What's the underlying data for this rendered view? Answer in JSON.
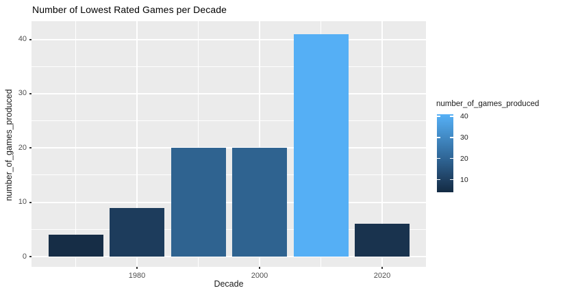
{
  "title": "Number of Lowest Rated Games per Decade",
  "chart_data": {
    "type": "bar",
    "title": "Number of Lowest Rated Games per Decade",
    "xlabel": "Decade",
    "ylabel": "number_of_games_produced",
    "categories": [
      1970,
      1980,
      1990,
      2000,
      2010,
      2020
    ],
    "values": [
      4,
      9,
      20,
      20,
      41,
      6
    ],
    "bar_colors": [
      "#162D46",
      "#1D3C5C",
      "#2F6390",
      "#2F6390",
      "#55AFF5",
      "#19334E"
    ],
    "x_ticks": [
      1980,
      2000,
      2020
    ],
    "y_ticks": [
      0,
      10,
      20,
      30,
      40
    ],
    "x_minor": [
      1970,
      1990,
      2010
    ],
    "y_minor": [
      5,
      15,
      25,
      35
    ],
    "ylim": [
      0,
      43.3
    ],
    "grid": true,
    "panel_bg": "#EBEBEB",
    "grid_color": "#FFFFFF",
    "legend": {
      "position": "right",
      "title": "number_of_games_produced",
      "ticks": [
        40,
        30,
        20,
        10
      ],
      "range": [
        4,
        41
      ],
      "gradient_stops": [
        {
          "pos": 0.0,
          "color": "#56B1F7"
        },
        {
          "pos": 0.568,
          "color": "#2F6595"
        },
        {
          "pos": 0.865,
          "color": "#1D3C5C"
        },
        {
          "pos": 1.0,
          "color": "#132B43"
        }
      ]
    }
  }
}
